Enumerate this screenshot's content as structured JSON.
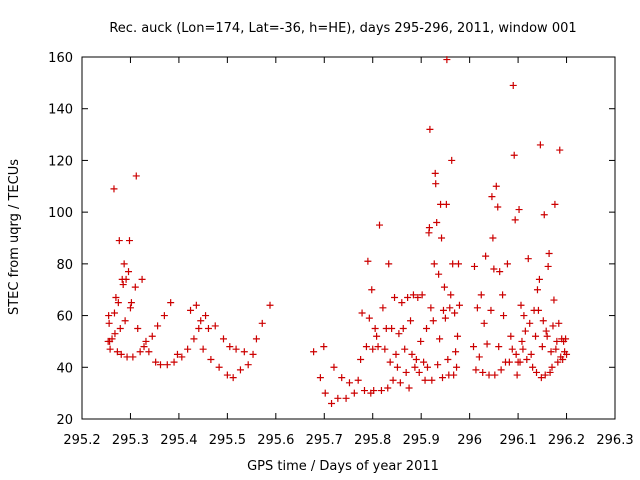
{
  "chart_data": {
    "type": "scatter",
    "title": "Rec. auck (Lon=174, Lat=-36, h=HE), days 295-296, 2011, window 001",
    "xlabel": "GPS time / Days of year 2011",
    "ylabel": "STEC from uqrg / TECUs",
    "xlim": [
      295.2,
      296.3
    ],
    "ylim": [
      20,
      160
    ],
    "xticks": [
      295.2,
      295.3,
      295.4,
      295.5,
      295.6,
      295.7,
      295.8,
      295.9,
      296.0,
      296.1,
      296.2,
      296.3
    ],
    "xtick_labels": [
      "295.2",
      "295.3",
      "295.4",
      "295.5",
      "295.6",
      "295.7",
      "295.8",
      "295.9",
      "296",
      "296.1",
      "296.2",
      "296.3"
    ],
    "yticks": [
      20,
      40,
      60,
      80,
      100,
      120,
      140,
      160
    ],
    "ytick_labels": [
      "20",
      "40",
      "60",
      "80",
      "100",
      "120",
      "140",
      "160"
    ],
    "grid": false,
    "marker": "+",
    "color": "#cc0000",
    "points": [
      [
        295.254,
        50
      ],
      [
        295.255,
        60
      ],
      [
        295.256,
        57
      ],
      [
        295.257,
        50
      ],
      [
        295.258,
        47
      ],
      [
        295.262,
        51
      ],
      [
        295.266,
        109
      ],
      [
        295.267,
        61
      ],
      [
        295.268,
        53
      ],
      [
        295.27,
        67
      ],
      [
        295.273,
        46
      ],
      [
        295.275,
        65
      ],
      [
        295.277,
        89
      ],
      [
        295.279,
        55
      ],
      [
        295.281,
        45
      ],
      [
        295.283,
        74
      ],
      [
        295.285,
        72
      ],
      [
        295.287,
        80
      ],
      [
        295.289,
        58
      ],
      [
        295.291,
        74
      ],
      [
        295.293,
        44
      ],
      [
        295.296,
        77
      ],
      [
        295.298,
        89
      ],
      [
        295.3,
        63
      ],
      [
        295.302,
        65
      ],
      [
        295.305,
        44
      ],
      [
        295.31,
        71
      ],
      [
        295.312,
        114
      ],
      [
        295.315,
        55
      ],
      [
        295.32,
        46
      ],
      [
        295.324,
        74
      ],
      [
        295.328,
        48
      ],
      [
        295.332,
        50
      ],
      [
        295.338,
        46
      ],
      [
        295.345,
        52
      ],
      [
        295.352,
        42
      ],
      [
        295.356,
        56
      ],
      [
        295.362,
        41
      ],
      [
        295.37,
        60
      ],
      [
        295.376,
        41
      ],
      [
        295.383,
        65
      ],
      [
        295.39,
        42
      ],
      [
        295.397,
        45
      ],
      [
        295.406,
        44
      ],
      [
        295.418,
        47
      ],
      [
        295.424,
        62
      ],
      [
        295.431,
        51
      ],
      [
        295.436,
        64
      ],
      [
        295.441,
        55
      ],
      [
        295.445,
        58
      ],
      [
        295.45,
        47
      ],
      [
        295.455,
        60
      ],
      [
        295.461,
        55
      ],
      [
        295.466,
        43
      ],
      [
        295.475,
        56
      ],
      [
        295.483,
        40
      ],
      [
        295.492,
        51
      ],
      [
        295.5,
        37
      ],
      [
        295.505,
        48
      ],
      [
        295.512,
        36
      ],
      [
        295.518,
        47
      ],
      [
        295.527,
        39
      ],
      [
        295.535,
        46
      ],
      [
        295.543,
        41
      ],
      [
        295.553,
        45
      ],
      [
        295.56,
        51
      ],
      [
        295.572,
        57
      ],
      [
        295.588,
        64
      ],
      [
        295.678,
        46
      ],
      [
        295.692,
        36
      ],
      [
        295.699,
        48
      ],
      [
        295.702,
        30
      ],
      [
        295.715,
        26
      ],
      [
        295.72,
        40
      ],
      [
        295.728,
        28
      ],
      [
        295.736,
        36
      ],
      [
        295.745,
        28
      ],
      [
        295.752,
        34
      ],
      [
        295.762,
        30
      ],
      [
        295.77,
        35
      ],
      [
        295.775,
        43
      ],
      [
        295.778,
        61
      ],
      [
        295.783,
        31
      ],
      [
        295.787,
        48
      ],
      [
        295.79,
        81
      ],
      [
        295.793,
        59
      ],
      [
        295.796,
        30
      ],
      [
        295.798,
        70
      ],
      [
        295.8,
        47
      ],
      [
        295.802,
        31
      ],
      [
        295.805,
        55
      ],
      [
        295.808,
        52
      ],
      [
        295.811,
        48
      ],
      [
        295.814,
        95
      ],
      [
        295.818,
        31
      ],
      [
        295.821,
        63
      ],
      [
        295.825,
        47
      ],
      [
        295.828,
        55
      ],
      [
        295.831,
        32
      ],
      [
        295.833,
        80
      ],
      [
        295.836,
        42
      ],
      [
        295.839,
        55
      ],
      [
        295.842,
        35
      ],
      [
        295.845,
        67
      ],
      [
        295.848,
        45
      ],
      [
        295.851,
        40
      ],
      [
        295.854,
        53
      ],
      [
        295.857,
        34
      ],
      [
        295.86,
        65
      ],
      [
        295.863,
        55
      ],
      [
        295.866,
        47
      ],
      [
        295.869,
        38
      ],
      [
        295.872,
        67
      ],
      [
        295.875,
        32
      ],
      [
        295.878,
        58
      ],
      [
        295.881,
        45
      ],
      [
        295.884,
        68
      ],
      [
        295.887,
        40
      ],
      [
        295.89,
        43
      ],
      [
        295.893,
        67
      ],
      [
        295.896,
        38
      ],
      [
        295.899,
        50
      ],
      [
        295.902,
        68
      ],
      [
        295.905,
        42
      ],
      [
        295.908,
        35
      ],
      [
        295.911,
        55
      ],
      [
        295.913,
        40
      ],
      [
        295.916,
        92
      ],
      [
        295.917,
        94
      ],
      [
        295.918,
        132
      ],
      [
        295.92,
        63
      ],
      [
        295.922,
        35
      ],
      [
        295.925,
        58
      ],
      [
        295.927,
        80
      ],
      [
        295.929,
        115
      ],
      [
        295.93,
        111
      ],
      [
        295.932,
        96
      ],
      [
        295.934,
        41
      ],
      [
        295.936,
        76
      ],
      [
        295.938,
        51
      ],
      [
        295.94,
        103
      ],
      [
        295.942,
        90
      ],
      [
        295.944,
        36
      ],
      [
        295.946,
        62
      ],
      [
        295.948,
        71
      ],
      [
        295.95,
        59
      ],
      [
        295.952,
        103
      ],
      [
        295.953,
        159
      ],
      [
        295.955,
        43
      ],
      [
        295.957,
        37
      ],
      [
        295.959,
        63
      ],
      [
        295.961,
        68
      ],
      [
        295.963,
        120
      ],
      [
        295.965,
        80
      ],
      [
        295.967,
        37
      ],
      [
        295.969,
        61
      ],
      [
        295.971,
        46
      ],
      [
        295.973,
        40
      ],
      [
        295.975,
        52
      ],
      [
        295.977,
        80
      ],
      [
        295.979,
        64
      ],
      [
        296.008,
        48
      ],
      [
        296.01,
        79
      ],
      [
        296.013,
        39
      ],
      [
        296.016,
        63
      ],
      [
        296.02,
        44
      ],
      [
        296.024,
        68
      ],
      [
        296.027,
        38
      ],
      [
        296.03,
        57
      ],
      [
        296.033,
        83
      ],
      [
        296.036,
        49
      ],
      [
        296.04,
        37
      ],
      [
        296.044,
        62
      ],
      [
        296.046,
        106
      ],
      [
        296.048,
        90
      ],
      [
        296.05,
        78
      ],
      [
        296.052,
        37
      ],
      [
        296.055,
        110
      ],
      [
        296.058,
        102
      ],
      [
        296.06,
        48
      ],
      [
        296.062,
        77
      ],
      [
        296.065,
        39
      ],
      [
        296.068,
        68
      ],
      [
        296.07,
        60
      ],
      [
        296.074,
        42
      ],
      [
        296.078,
        80
      ],
      [
        296.082,
        42
      ],
      [
        296.085,
        52
      ],
      [
        296.088,
        47
      ],
      [
        296.09,
        149
      ],
      [
        296.092,
        122
      ],
      [
        296.094,
        97
      ],
      [
        296.096,
        45
      ],
      [
        296.098,
        37
      ],
      [
        296.1,
        42
      ],
      [
        296.102,
        101
      ],
      [
        296.104,
        42
      ],
      [
        296.106,
        64
      ],
      [
        296.108,
        50
      ],
      [
        296.11,
        47
      ],
      [
        296.112,
        60
      ],
      [
        296.115,
        54
      ],
      [
        296.118,
        43
      ],
      [
        296.121,
        82
      ],
      [
        296.124,
        57
      ],
      [
        296.127,
        45
      ],
      [
        296.13,
        40
      ],
      [
        296.133,
        62
      ],
      [
        296.136,
        52
      ],
      [
        296.138,
        38
      ],
      [
        296.14,
        70
      ],
      [
        296.142,
        62
      ],
      [
        296.144,
        74
      ],
      [
        296.146,
        126
      ],
      [
        296.148,
        36
      ],
      [
        296.15,
        48
      ],
      [
        296.152,
        58
      ],
      [
        296.154,
        99
      ],
      [
        296.156,
        37
      ],
      [
        296.158,
        54
      ],
      [
        296.16,
        52
      ],
      [
        296.162,
        79
      ],
      [
        296.164,
        84
      ],
      [
        296.166,
        38
      ],
      [
        296.168,
        46
      ],
      [
        296.17,
        40
      ],
      [
        296.172,
        56
      ],
      [
        296.174,
        66
      ],
      [
        296.176,
        103
      ],
      [
        296.178,
        47
      ],
      [
        296.18,
        50
      ],
      [
        296.182,
        42
      ],
      [
        296.184,
        57
      ],
      [
        296.186,
        124
      ],
      [
        296.188,
        44
      ],
      [
        296.19,
        51
      ],
      [
        296.192,
        43
      ],
      [
        296.194,
        50
      ],
      [
        296.196,
        46
      ],
      [
        296.198,
        51
      ],
      [
        296.2,
        45
      ]
    ]
  }
}
